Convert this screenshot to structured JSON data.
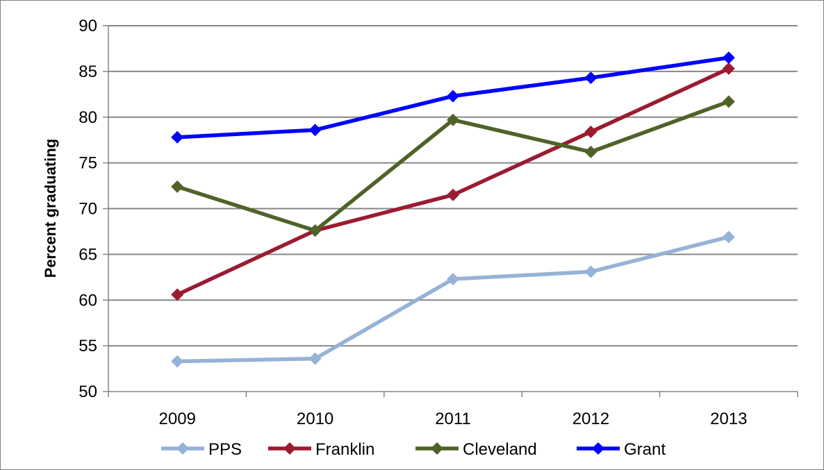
{
  "chart_data": {
    "type": "line",
    "title": "",
    "xlabel": "",
    "ylabel": "Percent graduating",
    "categories": [
      "2009",
      "2010",
      "2011",
      "2012",
      "2013"
    ],
    "ylim": [
      50,
      90
    ],
    "yticks": [
      50,
      55,
      60,
      65,
      70,
      75,
      80,
      85,
      90
    ],
    "grid": "horizontal",
    "legend_position": "bottom",
    "series": [
      {
        "name": "PPS",
        "color": "#95b3d7",
        "values": [
          53.3,
          53.6,
          62.3,
          63.1,
          66.9
        ]
      },
      {
        "name": "Franklin",
        "color": "#9b1b30",
        "values": [
          60.6,
          67.6,
          71.5,
          78.4,
          85.3
        ]
      },
      {
        "name": "Cleveland",
        "color": "#4f6228",
        "values": [
          72.4,
          67.6,
          79.7,
          76.2,
          81.7
        ]
      },
      {
        "name": "Grant",
        "color": "#0000ff",
        "values": [
          77.8,
          78.6,
          82.3,
          84.3,
          86.5
        ]
      }
    ]
  }
}
